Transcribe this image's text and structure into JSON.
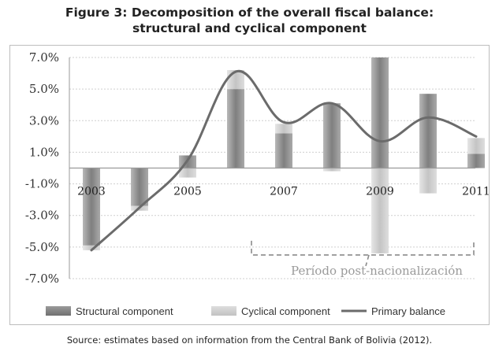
{
  "title_lines": [
    "Figure 3: Decomposition of the overall fiscal balance:",
    "structural and cyclical component"
  ],
  "source": "Source: estimates based on information from the Central Bank of Bolivia (2012).",
  "chart_data": {
    "type": "bar",
    "categories": [
      "2003",
      "2004",
      "2005",
      "2006",
      "2007",
      "2008",
      "2009",
      "2010",
      "2011"
    ],
    "x_tick_labels": [
      "2003",
      "",
      "2005",
      "",
      "2007",
      "",
      "2009",
      "",
      "2011"
    ],
    "series": [
      {
        "name": "Structural component",
        "type": "bar",
        "color": "#8c8c8c",
        "values": [
          -4.9,
          -2.4,
          0.8,
          5.0,
          2.2,
          4.1,
          7.0,
          4.7,
          0.9
        ]
      },
      {
        "name": "Cyclical component",
        "type": "bar",
        "color": "#d2d2d2",
        "values": [
          -0.3,
          -0.3,
          -0.6,
          1.2,
          0.6,
          -0.2,
          -5.4,
          -1.6,
          1.0
        ]
      },
      {
        "name": "Primary balance",
        "type": "line",
        "color": "#6e6e6e",
        "values": [
          -5.2,
          -2.5,
          0.5,
          6.1,
          2.9,
          4.1,
          1.7,
          3.2,
          2.0
        ]
      }
    ],
    "y_tick_labels": [
      "7.0%",
      "5.0%",
      "3.0%",
      "1.0%",
      "-1.0%",
      "-3.0%",
      "-5.0%",
      "-7.0%"
    ],
    "y_tick_values": [
      7,
      5,
      3,
      1,
      -1,
      -3,
      -5,
      -7
    ],
    "ylim": [
      -7,
      7
    ],
    "grid": true,
    "legend_position": "bottom",
    "annotation": "Período post-nacionalización",
    "annotation_span": [
      "2006",
      "2011"
    ]
  }
}
